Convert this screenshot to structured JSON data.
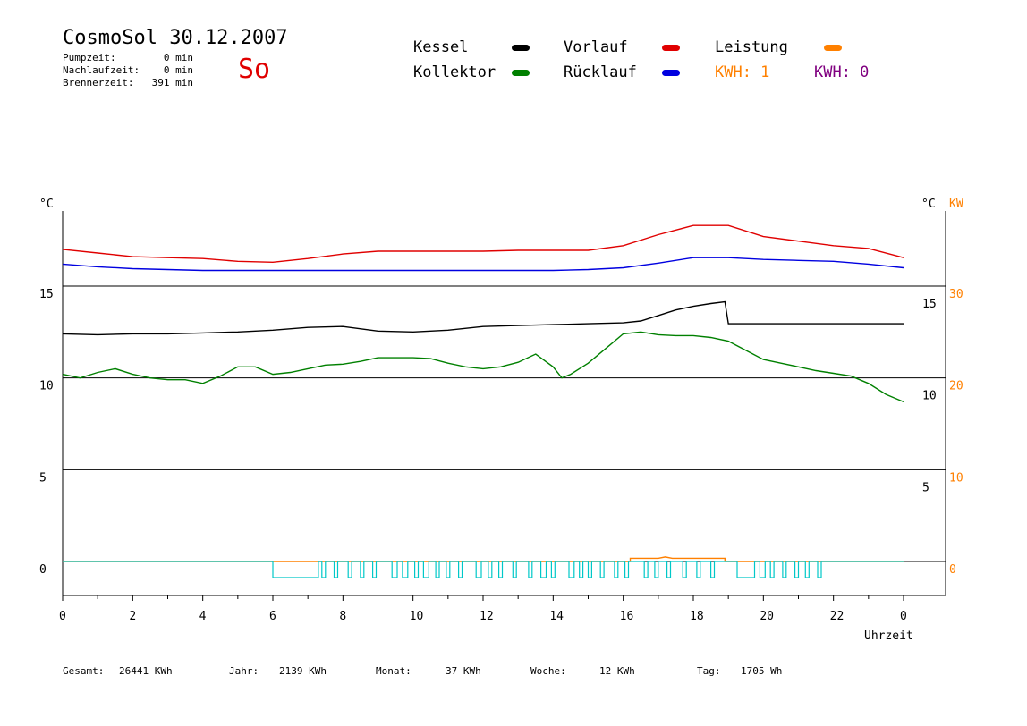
{
  "header": {
    "title": "CosmoSol 30.12.2007",
    "day": "So",
    "stats": [
      {
        "label": "Pumpzeit:",
        "value": "0 min"
      },
      {
        "label": "Nachlaufzeit:",
        "value": "0 min"
      },
      {
        "label": "Brennerzeit:",
        "value": "391 min"
      }
    ]
  },
  "legend": {
    "kessel": {
      "label": "Kessel",
      "color": "#000000"
    },
    "kollektor": {
      "label": "Kollektor",
      "color": "#008000"
    },
    "vorlauf": {
      "label": "Vorlauf",
      "color": "#e00000"
    },
    "ruecklauf": {
      "label": "Rücklauf",
      "color": "#0000e0"
    },
    "leistung": {
      "label": "Leistung",
      "color": "#ff8000"
    },
    "kwh1": {
      "label": "KWH: 1",
      "color": "#ff8000"
    },
    "kwh0": {
      "label": "KWH: 0",
      "color": "#800080"
    }
  },
  "footer": [
    {
      "label": "Gesamt:",
      "value": "26441 KWh"
    },
    {
      "label": "Jahr:",
      "value": "2139 KWh"
    },
    {
      "label": "Monat:",
      "value": "37 KWh"
    },
    {
      "label": "Woche:",
      "value": "12 KWh"
    },
    {
      "label": "Tag:",
      "value": "1705 Wh"
    }
  ],
  "chart_data": {
    "type": "line",
    "x_unit_label": "Uhrzeit",
    "left_unit": "°C",
    "right_unit_c": "°C",
    "right_unit_kw": "KW",
    "xlim": [
      0,
      24
    ],
    "x_ticks": [
      "0",
      "2",
      "4",
      "6",
      "8",
      "10",
      "12",
      "14",
      "16",
      "18",
      "20",
      "22",
      "0"
    ],
    "left_ticks": [
      15,
      10,
      5,
      0
    ],
    "right_ticks_c": [
      15,
      10,
      5
    ],
    "right_ticks_kw": [
      30,
      20,
      10,
      0
    ],
    "grid_horizontal": true,
    "series": [
      {
        "name": "Vorlauf",
        "color": "#e00000",
        "x": [
          0,
          1,
          2,
          3,
          4,
          5,
          6,
          7,
          8,
          9,
          10,
          11,
          12,
          13,
          14,
          15,
          16,
          17,
          18,
          19,
          20,
          21,
          22,
          23,
          24
        ],
        "y": [
          17.0,
          16.8,
          16.6,
          16.55,
          16.5,
          16.35,
          16.3,
          16.5,
          16.75,
          16.9,
          16.9,
          16.9,
          16.9,
          16.95,
          16.95,
          16.95,
          17.2,
          17.8,
          18.3,
          18.3,
          17.7,
          17.45,
          17.2,
          17.05,
          16.55
        ]
      },
      {
        "name": "Rücklauf",
        "color": "#0000e0",
        "x": [
          0,
          1,
          2,
          3,
          4,
          5,
          6,
          7,
          8,
          9,
          10,
          11,
          12,
          13,
          14,
          15,
          16,
          17,
          18,
          19,
          20,
          21,
          22,
          23,
          24
        ],
        "y": [
          16.2,
          16.05,
          15.95,
          15.9,
          15.85,
          15.85,
          15.85,
          15.85,
          15.85,
          15.85,
          15.85,
          15.85,
          15.85,
          15.85,
          15.85,
          15.9,
          16.0,
          16.25,
          16.55,
          16.55,
          16.45,
          16.4,
          16.35,
          16.2,
          16.0
        ]
      },
      {
        "name": "Kessel",
        "color": "#000000",
        "x": [
          0,
          1,
          2,
          3,
          4,
          5,
          6,
          7,
          8,
          9,
          10,
          11,
          12,
          13,
          14,
          15,
          16,
          16.5,
          17,
          17.5,
          18,
          18.5,
          18.9,
          19.0,
          20,
          21,
          22,
          23,
          24
        ],
        "y": [
          12.4,
          12.35,
          12.4,
          12.4,
          12.45,
          12.5,
          12.6,
          12.75,
          12.8,
          12.55,
          12.5,
          12.6,
          12.8,
          12.85,
          12.9,
          12.95,
          13.0,
          13.1,
          13.4,
          13.7,
          13.9,
          14.05,
          14.15,
          12.95,
          12.95,
          12.95,
          12.95,
          12.95,
          12.95
        ]
      },
      {
        "name": "Kollektor",
        "color": "#008000",
        "x": [
          0,
          0.5,
          1,
          1.5,
          2,
          2.5,
          3,
          3.5,
          4,
          4.5,
          5,
          5.5,
          6,
          6.5,
          7,
          7.5,
          8,
          8.5,
          9,
          9.5,
          10,
          10.5,
          11,
          11.5,
          12,
          12.5,
          13,
          13.5,
          14,
          14.25,
          14.5,
          15,
          15.5,
          16,
          16.5,
          17,
          17.5,
          18,
          18.5,
          19,
          19.5,
          20,
          20.5,
          21,
          21.5,
          22,
          22.5,
          23,
          23.5,
          24
        ],
        "y": [
          10.2,
          10.0,
          10.3,
          10.5,
          10.2,
          10.0,
          9.9,
          9.9,
          9.7,
          10.1,
          10.6,
          10.6,
          10.2,
          10.3,
          10.5,
          10.7,
          10.75,
          10.9,
          11.1,
          11.1,
          11.1,
          11.05,
          10.8,
          10.6,
          10.5,
          10.6,
          10.85,
          11.3,
          10.6,
          10.0,
          10.2,
          10.8,
          11.6,
          12.4,
          12.5,
          12.35,
          12.3,
          12.3,
          12.2,
          12.0,
          11.5,
          11.0,
          10.8,
          10.6,
          10.4,
          10.25,
          10.1,
          9.7,
          9.1,
          8.7
        ]
      },
      {
        "name": "Leistung",
        "color": "#ff8000",
        "x": [
          0,
          16.2,
          16.2,
          17.0,
          17.2,
          17.4,
          18.9,
          18.9,
          24
        ],
        "y": [
          0,
          0,
          0.35,
          0.35,
          0.5,
          0.35,
          0.35,
          0,
          0
        ]
      }
    ],
    "brenner_segments": [
      [
        6.0,
        7.3
      ],
      [
        7.4,
        7.5
      ],
      [
        7.75,
        7.85
      ],
      [
        8.15,
        8.25
      ],
      [
        8.5,
        8.6
      ],
      [
        8.85,
        8.95
      ],
      [
        9.4,
        9.55
      ],
      [
        9.7,
        9.85
      ],
      [
        10.05,
        10.15
      ],
      [
        10.3,
        10.45
      ],
      [
        10.65,
        10.75
      ],
      [
        10.95,
        11.05
      ],
      [
        11.3,
        11.4
      ],
      [
        11.8,
        11.95
      ],
      [
        12.15,
        12.25
      ],
      [
        12.45,
        12.55
      ],
      [
        12.85,
        12.95
      ],
      [
        13.3,
        13.4
      ],
      [
        13.65,
        13.8
      ],
      [
        13.95,
        14.05
      ],
      [
        14.45,
        14.6
      ],
      [
        14.75,
        14.85
      ],
      [
        15.0,
        15.1
      ],
      [
        15.35,
        15.45
      ],
      [
        15.75,
        15.85
      ],
      [
        16.05,
        16.15
      ],
      [
        16.6,
        16.7
      ],
      [
        16.9,
        17.0
      ],
      [
        17.25,
        17.35
      ],
      [
        17.7,
        17.8
      ],
      [
        18.1,
        18.2
      ],
      [
        18.5,
        18.6
      ],
      [
        19.25,
        19.75
      ],
      [
        19.9,
        20.05
      ],
      [
        20.2,
        20.3
      ],
      [
        20.55,
        20.65
      ],
      [
        20.9,
        21.0
      ],
      [
        21.2,
        21.3
      ],
      [
        21.55,
        21.65
      ]
    ]
  }
}
